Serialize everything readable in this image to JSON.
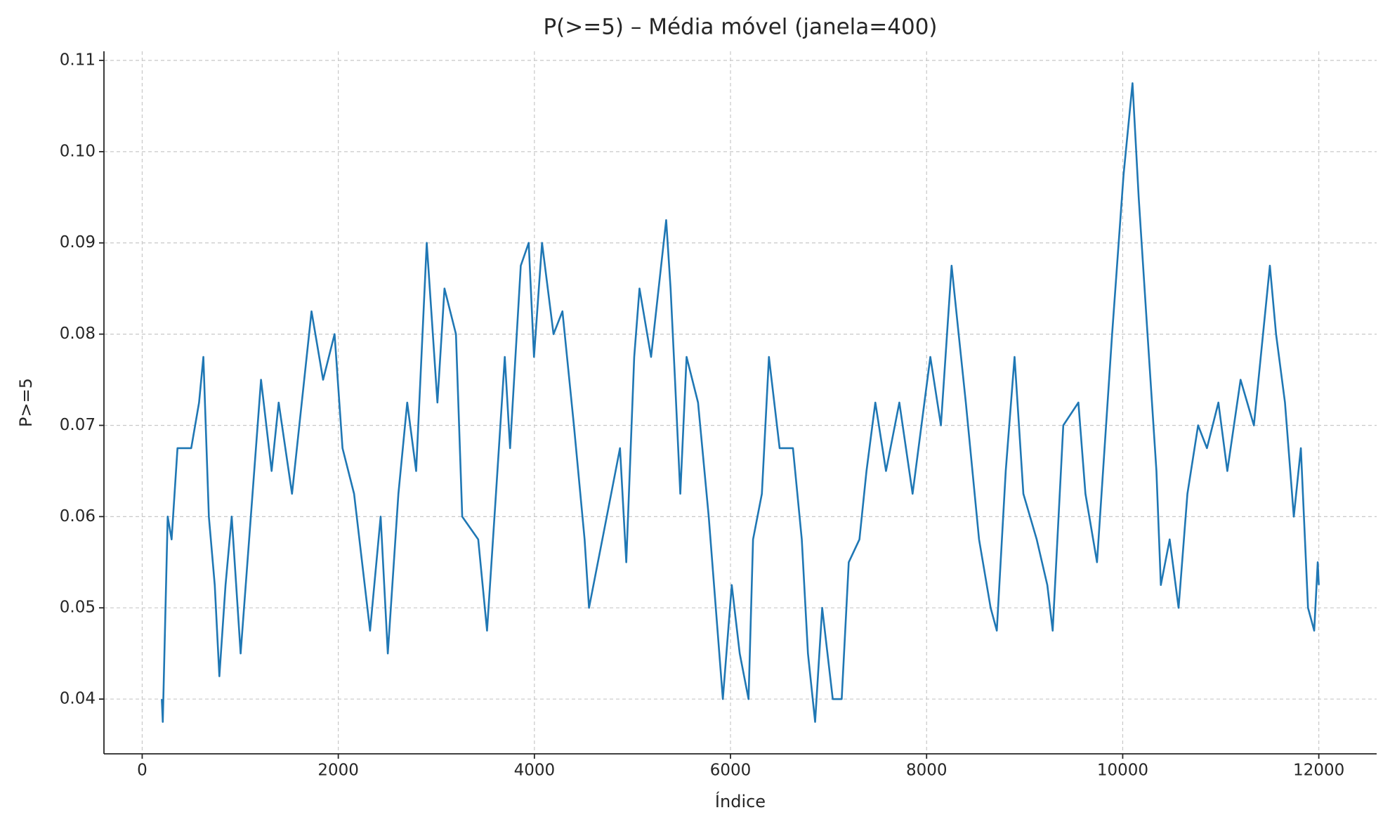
{
  "chart_data": {
    "type": "line",
    "title": "P(>=5) – Média móvel (janela=400)",
    "x_label": "Índice",
    "y_label": "P>=5",
    "color": "#1f77b4",
    "grid": true,
    "xlim": [
      -390,
      12590
    ],
    "ylim": [
      0.034,
      0.111
    ],
    "xticks": [
      0,
      2000,
      4000,
      6000,
      8000,
      10000,
      12000
    ],
    "yticks": [
      0.04,
      0.05,
      0.06,
      0.07,
      0.08,
      0.09,
      {
        "value": 0.1,
        "label": "0.10"
      },
      0.11
    ],
    "x": [
      200,
      210,
      260,
      300,
      360,
      420,
      500,
      580,
      624,
      680,
      740,
      787,
      850,
      913,
      1004,
      1212,
      1320,
      1392,
      1528,
      1727,
      1845,
      1962,
      2043,
      2161,
      2324,
      2432,
      2505,
      2613,
      2703,
      2794,
      2902,
      3011,
      3083,
      3200,
      3264,
      3427,
      3517,
      3608,
      3698,
      3752,
      3861,
      3942,
      3996,
      4078,
      4195,
      4286,
      4403,
      4512,
      4557,
      4693,
      4873,
      4937,
      5018,
      5072,
      5190,
      5344,
      5389,
      5434,
      5488,
      5552,
      5669,
      5778,
      5922,
      6013,
      6094,
      6184,
      6230,
      6320,
      6392,
      6501,
      6637,
      6727,
      6790,
      6863,
      6935,
      7043,
      7134,
      7206,
      7315,
      7387,
      7477,
      7586,
      7722,
      7857,
      8038,
      8146,
      8255,
      8327,
      8400,
      8535,
      8653,
      8716,
      8807,
      8897,
      8987,
      9123,
      9231,
      9286,
      9394,
      9548,
      9620,
      9738,
      9892,
      10009,
      10100,
      10163,
      10253,
      10344,
      10389,
      10479,
      10570,
      10660,
      10769,
      10859,
      10976,
      11067,
      11202,
      11338,
      11501,
      11564,
      11655,
      11745,
      11817,
      11890,
      11953,
      11989,
      12000
    ],
    "values": [
      0.04,
      0.0375,
      0.06,
      0.0575,
      0.0675,
      0.0675,
      0.0675,
      0.0725,
      0.0775,
      0.06,
      0.0525,
      0.0425,
      0.0525,
      0.06,
      0.045,
      0.075,
      0.065,
      0.0725,
      0.0625,
      0.0825,
      0.075,
      0.08,
      0.0675,
      0.0625,
      0.0475,
      0.06,
      0.045,
      0.0625,
      0.0725,
      0.065,
      0.09,
      0.0725,
      0.085,
      0.08,
      0.06,
      0.0575,
      0.0475,
      0.0625,
      0.0775,
      0.0675,
      0.0875,
      0.09,
      0.0775,
      0.09,
      0.08,
      0.0825,
      0.07,
      0.0575,
      0.05,
      0.0575,
      0.0675,
      0.055,
      0.0775,
      0.085,
      0.0775,
      0.0925,
      0.085,
      0.075,
      0.0625,
      0.0775,
      0.0725,
      0.06,
      0.04,
      0.0525,
      0.045,
      0.04,
      0.0575,
      0.0625,
      0.0775,
      0.0675,
      0.0675,
      0.0575,
      0.045,
      0.0375,
      0.05,
      0.04,
      0.04,
      0.055,
      0.0575,
      0.065,
      0.0725,
      0.065,
      0.0725,
      0.0625,
      0.0775,
      0.07,
      0.0875,
      0.08,
      0.0725,
      0.0575,
      0.05,
      0.0475,
      0.065,
      0.0775,
      0.0625,
      0.0575,
      0.0525,
      0.0475,
      0.07,
      0.0725,
      0.0625,
      0.055,
      0.08,
      0.0975,
      0.1075,
      0.095,
      0.08,
      0.065,
      0.0525,
      0.0575,
      0.05,
      0.0625,
      0.07,
      0.0675,
      0.0725,
      0.065,
      0.075,
      0.07,
      0.0875,
      0.08,
      0.0725,
      0.06,
      0.0675,
      0.05,
      0.0475,
      0.055,
      0.0525
    ]
  }
}
